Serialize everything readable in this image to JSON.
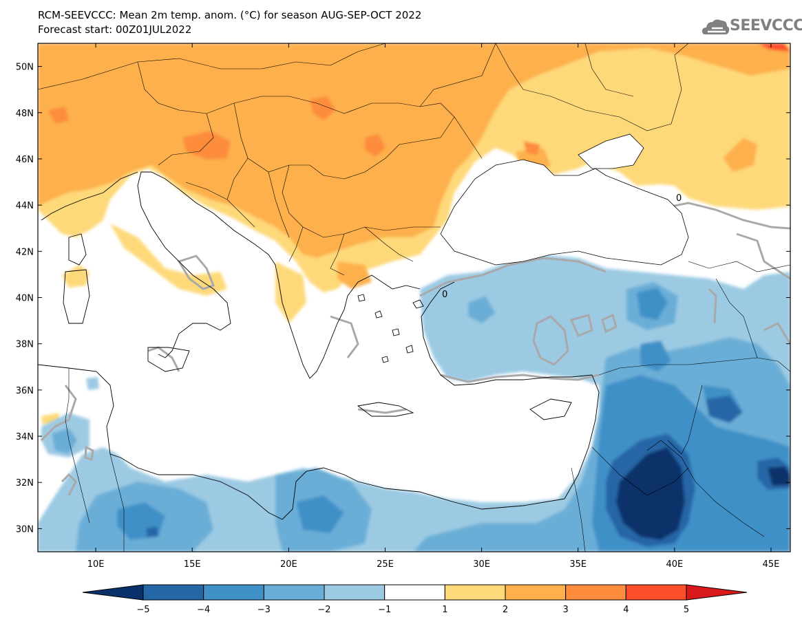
{
  "header": {
    "title_line1": "RCM-SEEVCCC: Mean 2m temp. anom. (°C) for season AUG-SEP-OCT 2022",
    "title_line2": "Forecast start: 00Z01JUL2022",
    "logo_text": "SEEVCCC",
    "logo_icon": "cloud-logo-icon"
  },
  "map": {
    "lon_range": [
      7,
      46
    ],
    "lat_range": [
      29,
      51
    ],
    "lon_ticks": [
      {
        "value": 10,
        "label": "10E"
      },
      {
        "value": 15,
        "label": "15E"
      },
      {
        "value": 20,
        "label": "20E"
      },
      {
        "value": 25,
        "label": "25E"
      },
      {
        "value": 30,
        "label": "30E"
      },
      {
        "value": 35,
        "label": "35E"
      },
      {
        "value": 40,
        "label": "40E"
      },
      {
        "value": 45,
        "label": "45E"
      }
    ],
    "lat_ticks": [
      {
        "value": 30,
        "label": "30N"
      },
      {
        "value": 32,
        "label": "32N"
      },
      {
        "value": 34,
        "label": "34N"
      },
      {
        "value": 36,
        "label": "36N"
      },
      {
        "value": 38,
        "label": "38N"
      },
      {
        "value": 40,
        "label": "40N"
      },
      {
        "value": 42,
        "label": "42N"
      },
      {
        "value": 44,
        "label": "44N"
      },
      {
        "value": 46,
        "label": "46N"
      },
      {
        "value": 48,
        "label": "48N"
      },
      {
        "value": 50,
        "label": "50N"
      }
    ],
    "contour_label": "0"
  },
  "colorbar": {
    "colors": [
      "#08306b",
      "#2566a6",
      "#4090c8",
      "#6aaed7",
      "#9ccae3",
      "#ffffff",
      "#fed97a",
      "#fdb04b",
      "#fd8c3c",
      "#fc4e2a",
      "#d7191c"
    ],
    "labels": [
      "−5",
      "−4",
      "−3",
      "−2",
      "−1",
      "1",
      "2",
      "3",
      "4",
      "5"
    ]
  }
}
